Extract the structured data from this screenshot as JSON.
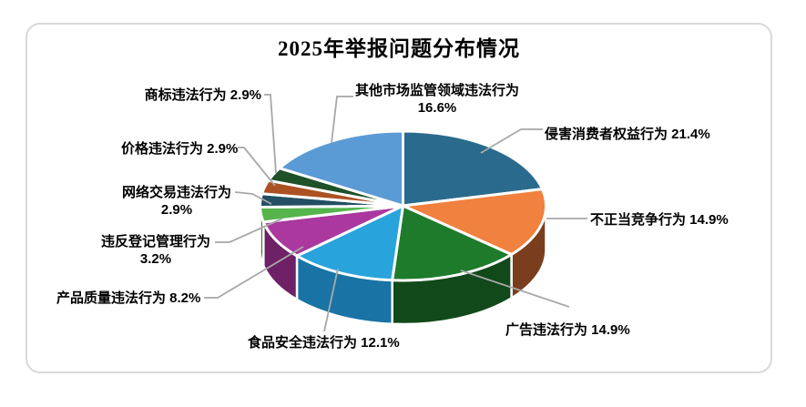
{
  "title": "2025年举报问题分布情况",
  "frame": {
    "border_color": "#D9D9D9",
    "background": "#FFFFFF"
  },
  "leader_line_color": "#A8A8A8",
  "chart_data": {
    "type": "pie",
    "title": "2025年举报问题分布情况",
    "style": "3d-pie",
    "unit": "%",
    "legend_position": "none",
    "start_angle_deg": 0,
    "direction": "clockwise",
    "slices": [
      {
        "label": "侵害消费者权益行为",
        "value": 21.4,
        "callout": "侵害消费者权益行为 21.4%",
        "color": "#2A6B8D",
        "side": "#1B4761"
      },
      {
        "label": "不正当竞争行为",
        "value": 14.9,
        "callout": "不正当竞争行为 14.9%",
        "color": "#F0813E",
        "side": "#7A3E1E"
      },
      {
        "label": "广告违法行为",
        "value": 14.9,
        "callout": "广告违法行为 14.9%",
        "color": "#1E7B2C",
        "side": "#11491B"
      },
      {
        "label": "食品安全违法行为",
        "value": 12.1,
        "callout": "食品安全违法行为 12.1%",
        "color": "#29A3DC",
        "side": "#1973A4"
      },
      {
        "label": "产品质量违法行为",
        "value": 8.2,
        "callout": "产品质量违法行为 8.2%",
        "color": "#AA389E",
        "side": "#6E2166"
      },
      {
        "label": "违反登记管理行为",
        "value": 3.2,
        "callout": "违反登记管理行为 3.2%",
        "color": "#55B44B",
        "side": "#357A2F"
      },
      {
        "label": "网络交易违法行为",
        "value": 2.9,
        "callout": "网络交易违法行为 2.9%",
        "color": "#224F63",
        "side": "#142F3C"
      },
      {
        "label": "价格违法行为",
        "value": 2.9,
        "callout": "价格违法行为 2.9%",
        "color": "#AC5122",
        "side": "#693114"
      },
      {
        "label": "商标违法行为",
        "value": 2.9,
        "callout": "商标违法行为 2.9%",
        "color": "#1E5128",
        "side": "#113018"
      },
      {
        "label": "其他市场监管领域违法行为",
        "value": 16.6,
        "callout": "其他市场监管领域违法行为 16.6%",
        "color": "#5B9BD5",
        "side": "#3A6F9F"
      }
    ]
  }
}
